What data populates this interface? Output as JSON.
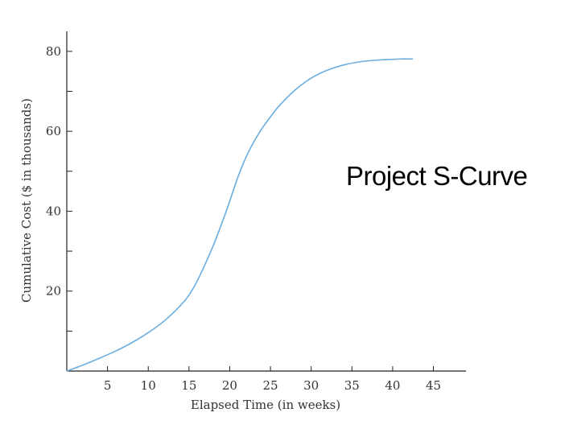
{
  "chart_data": {
    "type": "line",
    "title": "Project S-Curve",
    "xlabel": "Elapsed Time (in weeks)",
    "ylabel": "Cumulative Cost ($ in thousands)",
    "xlim": [
      0,
      49
    ],
    "ylim": [
      0,
      85
    ],
    "x_ticks": [
      5,
      10,
      15,
      20,
      25,
      30,
      35,
      40,
      45
    ],
    "y_ticks": [
      20,
      40,
      60,
      80
    ],
    "y_minor_ticks": [
      10,
      30,
      50,
      70
    ],
    "grid": false,
    "line_color": "#6aaee0",
    "series": [
      {
        "x": [
          0,
          2,
          4,
          6,
          8,
          10,
          12,
          14,
          15,
          16,
          17,
          18,
          19,
          20,
          21,
          22,
          23,
          24,
          25,
          26,
          28,
          30,
          32,
          34,
          36,
          38,
          40,
          41,
          42.5
        ],
        "y": [
          0,
          1.5,
          3.2,
          5,
          7.1,
          9.6,
          12.6,
          16.5,
          19,
          22.5,
          26.8,
          31.5,
          36.8,
          42.5,
          48.5,
          53.5,
          57.5,
          60.8,
          63.6,
          66.2,
          70.3,
          73.3,
          75.3,
          76.6,
          77.4,
          77.8,
          78,
          78.1,
          78.1
        ]
      }
    ]
  }
}
